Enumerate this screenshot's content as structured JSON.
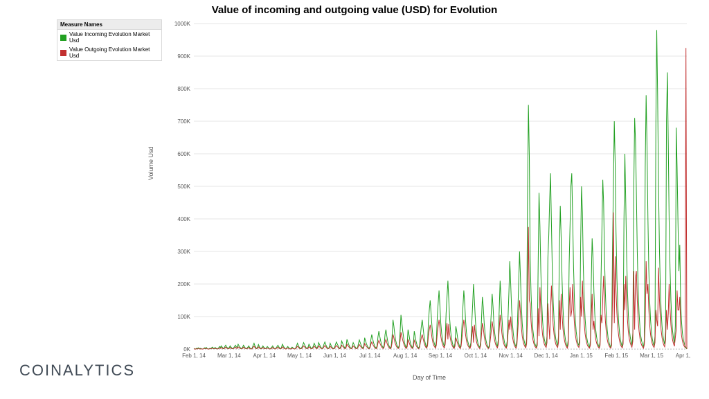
{
  "title": "Value of incoming and outgoing value (USD) for Evolution",
  "brand": "COINALYTICS",
  "legend": {
    "header": "Measure Names",
    "items": [
      {
        "label": "Value Incoming Evolution Market Usd",
        "color": "#22a022"
      },
      {
        "label": "Value Outgoing Evolution Market Usd",
        "color": "#c23030"
      }
    ]
  },
  "chart": {
    "type": "line",
    "background_color": "#ffffff",
    "grid_color": "#e5e5e5",
    "zero_line_color": "#bbbbbb",
    "x_label": "Day of Time",
    "y_label": "Volume Usd",
    "y": {
      "min": 0,
      "max": 1000000,
      "tick_step": 100000,
      "tick_labels": [
        "0K",
        "100K",
        "200K",
        "300K",
        "400K",
        "500K",
        "600K",
        "700K",
        "800K",
        "900K",
        "1000K"
      ]
    },
    "x": {
      "tick_labels": [
        "Feb 1, 14",
        "Mar 1, 14",
        "Apr 1, 14",
        "May 1, 14",
        "Jun 1, 14",
        "Jul 1, 14",
        "Aug 1, 14",
        "Sep 1, 14",
        "Oct 1, 14",
        "Nov 1, 14",
        "Dec 1, 14",
        "Jan 1, 15",
        "Feb 1, 15",
        "Mar 1, 15",
        "Apr 1, 15"
      ]
    },
    "series": [
      {
        "name": "incoming",
        "color": "#22a022",
        "line_width": 1,
        "values": [
          2,
          1,
          0,
          3,
          2,
          4,
          1,
          3,
          2,
          1,
          0,
          2,
          4,
          3,
          5,
          2,
          1,
          0,
          3,
          2,
          4,
          6,
          3,
          2,
          5,
          3,
          2,
          1,
          4,
          8,
          5,
          10,
          6,
          3,
          2,
          8,
          12,
          6,
          4,
          2,
          5,
          10,
          6,
          3,
          2,
          4,
          8,
          12,
          7,
          5,
          15,
          10,
          6,
          3,
          2,
          5,
          12,
          8,
          4,
          2,
          3,
          6,
          10,
          5,
          2,
          1,
          4,
          12,
          18,
          10,
          5,
          2,
          6,
          14,
          8,
          3,
          2,
          5,
          10,
          6,
          3,
          2,
          4,
          8,
          5,
          2,
          1,
          3,
          6,
          10,
          5,
          2,
          1,
          4,
          8,
          12,
          7,
          3,
          2,
          5,
          15,
          10,
          5,
          2,
          1,
          4,
          8,
          5,
          2,
          1,
          3,
          6,
          4,
          2,
          1,
          3,
          10,
          18,
          12,
          6,
          3,
          2,
          5,
          12,
          20,
          14,
          8,
          4,
          2,
          6,
          15,
          10,
          5,
          2,
          4,
          10,
          18,
          12,
          6,
          3,
          8,
          20,
          14,
          8,
          4,
          2,
          6,
          15,
          22,
          14,
          8,
          4,
          2,
          6,
          18,
          12,
          6,
          3,
          2,
          5,
          14,
          22,
          16,
          10,
          5,
          2,
          8,
          25,
          18,
          12,
          6,
          3,
          10,
          30,
          22,
          14,
          8,
          4,
          2,
          8,
          20,
          14,
          8,
          4,
          2,
          6,
          18,
          28,
          20,
          12,
          6,
          3,
          10,
          35,
          25,
          16,
          10,
          5,
          2,
          8,
          30,
          45,
          32,
          20,
          12,
          6,
          3,
          10,
          38,
          55,
          40,
          26,
          15,
          8,
          4,
          12,
          45,
          60,
          40,
          25,
          14,
          7,
          3,
          10,
          40,
          90,
          70,
          45,
          28,
          16,
          8,
          4,
          12,
          50,
          105,
          80,
          55,
          35,
          20,
          10,
          5,
          15,
          60,
          45,
          28,
          16,
          8,
          4,
          14,
          55,
          40,
          25,
          14,
          7,
          3,
          10,
          42,
          70,
          90,
          65,
          40,
          24,
          12,
          6,
          20,
          80,
          120,
          150,
          110,
          70,
          42,
          25,
          14,
          7,
          25,
          95,
          140,
          180,
          130,
          80,
          48,
          28,
          15,
          8,
          30,
          110,
          160,
          210,
          155,
          95,
          58,
          35,
          20,
          10,
          5,
          18,
          70,
          55,
          35,
          20,
          10,
          5,
          18,
          75,
          130,
          180,
          140,
          88,
          52,
          30,
          18,
          10,
          5,
          20,
          80,
          140,
          200,
          150,
          92,
          55,
          32,
          18,
          10,
          5,
          22,
          90,
          160,
          130,
          80,
          48,
          28,
          16,
          8,
          4,
          15,
          60,
          110,
          170,
          130,
          80,
          48,
          28,
          16,
          8,
          30,
          120,
          210,
          160,
          100,
          60,
          36,
          20,
          12,
          6,
          25,
          100,
          180,
          270,
          200,
          125,
          75,
          45,
          26,
          14,
          7,
          28,
          110,
          200,
          300,
          220,
          135,
          80,
          48,
          28,
          16,
          8,
          32,
          460,
          750,
          590,
          280,
          170,
          100,
          60,
          36,
          20,
          12,
          6,
          25,
          250,
          480,
          380,
          240,
          145,
          88,
          52,
          30,
          18,
          10,
          40,
          280,
          350,
          460,
          540,
          390,
          240,
          145,
          88,
          52,
          30,
          18,
          10,
          40,
          300,
          440,
          340,
          210,
          130,
          78,
          46,
          26,
          14,
          7,
          30,
          260,
          380,
          500,
          540,
          400,
          250,
          150,
          90,
          54,
          32,
          18,
          10,
          40,
          320,
          500,
          420,
          260,
          160,
          96,
          58,
          34,
          20,
          12,
          6,
          25,
          200,
          340,
          280,
          175,
          105,
          62,
          38,
          22,
          12,
          6,
          25,
          210,
          360,
          520,
          450,
          280,
          170,
          102,
          60,
          36,
          22,
          12,
          6,
          25,
          300,
          500,
          700,
          570,
          360,
          220,
          132,
          80,
          48,
          28,
          16,
          8,
          32,
          400,
          600,
          450,
          280,
          170,
          102,
          62,
          38,
          22,
          12,
          50,
          480,
          710,
          640,
          480,
          300,
          180,
          110,
          66,
          40,
          24,
          14,
          7,
          28,
          560,
          780,
          620,
          400,
          250,
          150,
          90,
          54,
          32,
          18,
          10,
          40,
          700,
          980,
          780,
          500,
          310,
          190,
          115,
          70,
          42,
          25,
          14,
          56,
          700,
          850,
          630,
          400,
          250,
          150,
          90,
          54,
          32,
          18,
          72,
          680,
          560,
          390,
          240,
          320,
          140,
          85,
          50,
          30,
          18,
          10,
          5,
          0
        ]
      },
      {
        "name": "outgoing",
        "color": "#c23030",
        "line_width": 1,
        "values": [
          1,
          0,
          0,
          1,
          0,
          2,
          1,
          0,
          1,
          0,
          0,
          1,
          2,
          1,
          2,
          1,
          0,
          0,
          1,
          1,
          2,
          3,
          1,
          1,
          2,
          1,
          1,
          0,
          2,
          4,
          2,
          5,
          3,
          1,
          1,
          4,
          6,
          3,
          2,
          1,
          2,
          5,
          3,
          1,
          1,
          2,
          4,
          6,
          3,
          2,
          7,
          5,
          3,
          1,
          1,
          2,
          6,
          4,
          2,
          1,
          1,
          3,
          5,
          2,
          1,
          0,
          2,
          6,
          9,
          5,
          2,
          1,
          3,
          7,
          4,
          1,
          1,
          2,
          5,
          3,
          1,
          1,
          2,
          4,
          2,
          1,
          0,
          1,
          3,
          5,
          2,
          1,
          0,
          2,
          4,
          6,
          3,
          1,
          1,
          2,
          7,
          5,
          2,
          1,
          0,
          2,
          4,
          2,
          1,
          0,
          1,
          3,
          2,
          1,
          0,
          1,
          5,
          9,
          6,
          3,
          1,
          1,
          2,
          6,
          10,
          7,
          4,
          2,
          1,
          3,
          7,
          5,
          2,
          1,
          2,
          5,
          9,
          6,
          3,
          1,
          4,
          10,
          7,
          4,
          2,
          1,
          3,
          7,
          11,
          7,
          4,
          2,
          1,
          3,
          9,
          6,
          3,
          1,
          1,
          2,
          7,
          11,
          8,
          5,
          2,
          1,
          4,
          12,
          9,
          6,
          3,
          1,
          5,
          15,
          11,
          7,
          4,
          2,
          1,
          4,
          10,
          7,
          4,
          2,
          1,
          3,
          9,
          14,
          10,
          6,
          3,
          1,
          5,
          17,
          12,
          8,
          5,
          2,
          1,
          4,
          15,
          22,
          16,
          10,
          6,
          3,
          1,
          5,
          19,
          27,
          20,
          13,
          7,
          4,
          2,
          6,
          22,
          30,
          20,
          12,
          7,
          3,
          1,
          5,
          20,
          45,
          35,
          22,
          14,
          8,
          4,
          2,
          6,
          25,
          52,
          40,
          27,
          17,
          10,
          5,
          2,
          7,
          30,
          22,
          14,
          8,
          4,
          2,
          7,
          27,
          20,
          12,
          7,
          3,
          1,
          5,
          21,
          35,
          45,
          32,
          20,
          12,
          6,
          3,
          10,
          40,
          60,
          75,
          55,
          35,
          21,
          12,
          7,
          3,
          12,
          47,
          70,
          90,
          65,
          40,
          24,
          14,
          7,
          4,
          15,
          55,
          80,
          30,
          77,
          47,
          29,
          17,
          10,
          5,
          2,
          9,
          35,
          27,
          17,
          10,
          5,
          2,
          9,
          37,
          65,
          90,
          70,
          44,
          26,
          15,
          9,
          5,
          2,
          10,
          40,
          70,
          20,
          75,
          46,
          27,
          16,
          9,
          5,
          2,
          11,
          45,
          80,
          65,
          40,
          24,
          14,
          8,
          4,
          2,
          7,
          30,
          55,
          85,
          65,
          40,
          24,
          14,
          8,
          4,
          15,
          60,
          105,
          80,
          50,
          30,
          18,
          10,
          6,
          3,
          12,
          50,
          90,
          60,
          100,
          62,
          37,
          22,
          13,
          7,
          3,
          14,
          55,
          100,
          150,
          110,
          67,
          40,
          24,
          14,
          8,
          4,
          16,
          100,
          375,
          150,
          140,
          85,
          50,
          30,
          18,
          10,
          6,
          3,
          12,
          125,
          40,
          190,
          120,
          72,
          44,
          26,
          15,
          9,
          5,
          20,
          140,
          80,
          30,
          120,
          195,
          120,
          72,
          44,
          26,
          15,
          9,
          5,
          20,
          150,
          60,
          170,
          105,
          65,
          39,
          23,
          13,
          7,
          3,
          15,
          130,
          190,
          100,
          120,
          200,
          125,
          75,
          45,
          27,
          16,
          9,
          5,
          20,
          160,
          100,
          210,
          130,
          80,
          48,
          29,
          17,
          10,
          6,
          3,
          12,
          100,
          170,
          60,
          87,
          52,
          31,
          19,
          11,
          6,
          3,
          12,
          105,
          80,
          160,
          225,
          140,
          85,
          51,
          30,
          18,
          11,
          6,
          3,
          12,
          150,
          420,
          80,
          285,
          180,
          110,
          66,
          40,
          24,
          14,
          8,
          4,
          16,
          200,
          120,
          225,
          140,
          85,
          51,
          31,
          19,
          11,
          6,
          25,
          240,
          60,
          220,
          240,
          150,
          90,
          55,
          33,
          20,
          12,
          7,
          3,
          14,
          80,
          270,
          170,
          200,
          125,
          75,
          45,
          27,
          16,
          9,
          5,
          20,
          120,
          90,
          70,
          250,
          155,
          95,
          57,
          35,
          21,
          12,
          7,
          28,
          120,
          60,
          110,
          200,
          125,
          75,
          45,
          27,
          16,
          9,
          36,
          60,
          180,
          120,
          120,
          160,
          70,
          42,
          25,
          15,
          9,
          5,
          925,
          0
        ]
      }
    ]
  }
}
